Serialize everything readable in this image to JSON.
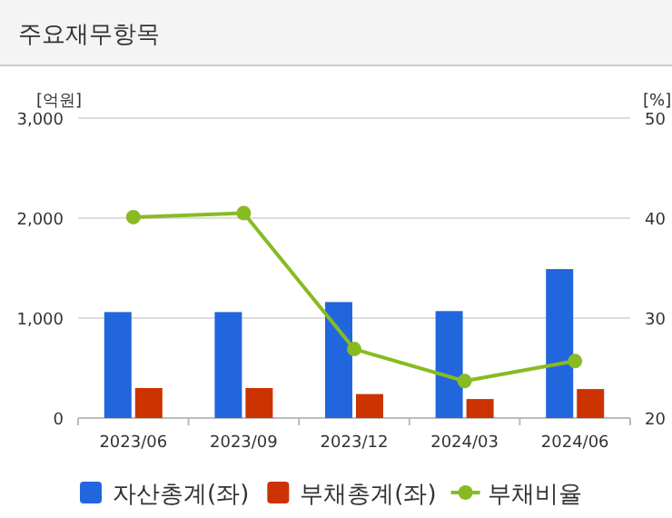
{
  "chart_data": {
    "type": "bar",
    "title": "주요재무항목",
    "ylabel": "[억원]",
    "y2label": "[%]",
    "categories": [
      "2023/06",
      "2023/09",
      "2023/12",
      "2024/03",
      "2024/06"
    ],
    "series": [
      {
        "name": "자산총계(좌)",
        "color": "#2266dd",
        "values": [
          1060,
          1060,
          1160,
          1070,
          1490
        ]
      },
      {
        "name": "부채총계(좌)",
        "color": "#cc3300",
        "values": [
          300,
          300,
          240,
          190,
          290
        ]
      },
      {
        "name": "부채비율",
        "type": "line",
        "axis": "y2",
        "color": "#88bb22",
        "marker": "circle",
        "values": [
          40.1,
          40.5,
          26.9,
          23.7,
          25.7
        ]
      }
    ],
    "ylim": [
      0,
      3000
    ],
    "yticks": [
      {
        "value": 0,
        "label": "0"
      },
      {
        "value": 1000,
        "label": "1,000"
      },
      {
        "value": 2000,
        "label": "2,000"
      },
      {
        "value": 3000,
        "label": "3,000"
      }
    ],
    "y2lim": [
      20,
      50
    ],
    "y2ticks": [
      20,
      30,
      40,
      50
    ],
    "grid": "y",
    "legend": "bottom"
  }
}
